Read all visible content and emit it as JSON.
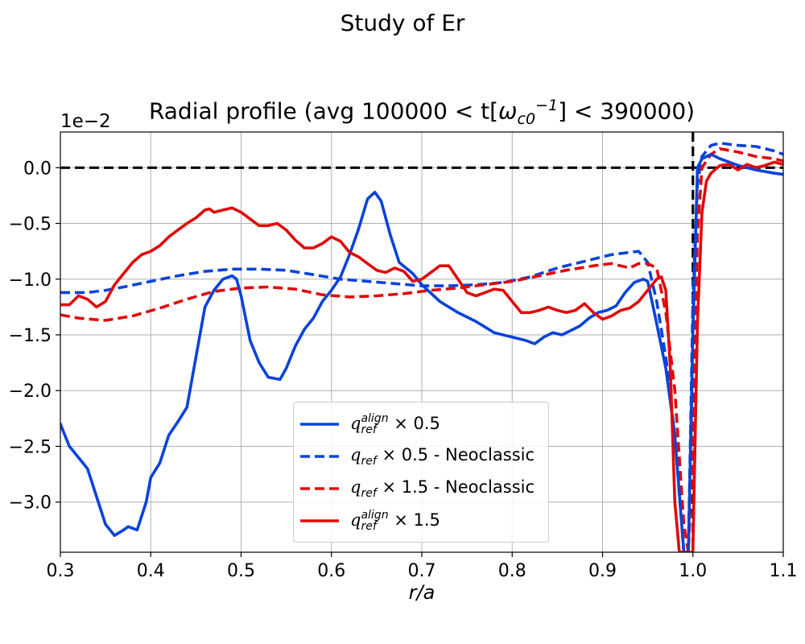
{
  "figure": {
    "suptitle": "Study of Er",
    "offset_label": "1e−2"
  },
  "chart_data": {
    "type": "line",
    "title": "Radial profile (avg 100000 < t[ω_c0^-1] < 390000)",
    "title_parts": {
      "prefix": "Radial profile (avg 100000 < t[",
      "symbol": "ω",
      "sub": "c0",
      "sup": "−1",
      "suffix": "] < 390000)"
    },
    "xlabel": "r/a",
    "ylabel": "",
    "y_scale_exponent": -2,
    "xlim": [
      0.3,
      1.1
    ],
    "ylim": [
      -3.45,
      0.32
    ],
    "xticks": [
      0.3,
      0.4,
      0.5,
      0.6,
      0.7,
      0.8,
      0.9,
      1.0,
      1.1
    ],
    "xtick_labels": [
      "0.3",
      "0.4",
      "0.5",
      "0.6",
      "0.7",
      "0.8",
      "0.9",
      "1.0",
      "1.1"
    ],
    "yticks": [
      0.0,
      -0.5,
      -1.0,
      -1.5,
      -2.0,
      -2.5,
      -3.0
    ],
    "ytick_labels": [
      "0.0",
      "−0.5",
      "−1.0",
      "−1.5",
      "−2.0",
      "−2.5",
      "−3.0"
    ],
    "grid": true,
    "legend_location": "lower center",
    "reference_lines": {
      "hline_y": 0.0,
      "vline_x": 1.0,
      "color": "#000000",
      "style": "dashed"
    },
    "series": [
      {
        "name": "q_ref^align × 0.5",
        "label_main": "q",
        "label_sup": "align",
        "label_sub": "ref",
        "label_rest": " × 0.5",
        "color": "#0a43d9",
        "style": "solid",
        "x": [
          0.3,
          0.31,
          0.32,
          0.33,
          0.34,
          0.35,
          0.36,
          0.37,
          0.375,
          0.385,
          0.395,
          0.4,
          0.41,
          0.42,
          0.43,
          0.44,
          0.45,
          0.46,
          0.47,
          0.48,
          0.49,
          0.495,
          0.5,
          0.51,
          0.52,
          0.53,
          0.543,
          0.55,
          0.56,
          0.57,
          0.58,
          0.59,
          0.6,
          0.61,
          0.62,
          0.63,
          0.64,
          0.648,
          0.655,
          0.665,
          0.675,
          0.69,
          0.7,
          0.72,
          0.74,
          0.76,
          0.78,
          0.8,
          0.815,
          0.825,
          0.835,
          0.845,
          0.855,
          0.865,
          0.875,
          0.885,
          0.895,
          0.905,
          0.915,
          0.925,
          0.935,
          0.945,
          0.95,
          0.96,
          0.97,
          0.98,
          0.99,
          0.995,
          1.0,
          1.005,
          1.01,
          1.02,
          1.03,
          1.05,
          1.07,
          1.09,
          1.1
        ],
        "y": [
          -2.3,
          -2.5,
          -2.6,
          -2.7,
          -2.95,
          -3.2,
          -3.3,
          -3.25,
          -3.22,
          -3.25,
          -3.0,
          -2.78,
          -2.65,
          -2.4,
          -2.28,
          -2.15,
          -1.7,
          -1.25,
          -1.1,
          -1.0,
          -0.97,
          -1.0,
          -1.15,
          -1.55,
          -1.75,
          -1.88,
          -1.9,
          -1.8,
          -1.6,
          -1.45,
          -1.35,
          -1.2,
          -1.1,
          -0.98,
          -0.78,
          -0.55,
          -0.28,
          -0.22,
          -0.3,
          -0.6,
          -0.85,
          -0.95,
          -1.05,
          -1.2,
          -1.3,
          -1.38,
          -1.48,
          -1.52,
          -1.55,
          -1.58,
          -1.52,
          -1.48,
          -1.5,
          -1.46,
          -1.42,
          -1.35,
          -1.3,
          -1.28,
          -1.24,
          -1.12,
          -1.03,
          -1.0,
          -1.02,
          -1.4,
          -1.8,
          -2.4,
          -3.45,
          -3.45,
          -1.5,
          0.0,
          0.08,
          0.12,
          0.08,
          0.02,
          -0.02,
          -0.05,
          -0.06
        ]
      },
      {
        "name": "q_ref × 0.5 - Neoclassic",
        "label_main": "q",
        "label_sup": "",
        "label_sub": "ref",
        "label_rest": " × 0.5 - Neoclassic",
        "color": "#0a43d9",
        "style": "dashed",
        "x": [
          0.3,
          0.33,
          0.35,
          0.37,
          0.4,
          0.43,
          0.46,
          0.49,
          0.52,
          0.55,
          0.58,
          0.61,
          0.64,
          0.67,
          0.7,
          0.73,
          0.76,
          0.79,
          0.82,
          0.85,
          0.88,
          0.91,
          0.93,
          0.94,
          0.95,
          0.96,
          0.97,
          0.98,
          0.99,
          0.995,
          1.0,
          1.005,
          1.01,
          1.02,
          1.03,
          1.05,
          1.07,
          1.09,
          1.1
        ],
        "y": [
          -1.12,
          -1.12,
          -1.1,
          -1.07,
          -1.02,
          -0.97,
          -0.93,
          -0.91,
          -0.91,
          -0.92,
          -0.96,
          -1.0,
          -1.02,
          -1.04,
          -1.06,
          -1.06,
          -1.05,
          -1.03,
          -0.98,
          -0.9,
          -0.84,
          -0.78,
          -0.76,
          -0.75,
          -0.85,
          -1.2,
          -1.7,
          -2.4,
          -3.45,
          -3.45,
          -1.2,
          -0.15,
          0.1,
          0.2,
          0.22,
          0.2,
          0.19,
          0.15,
          0.12
        ]
      },
      {
        "name": "q_ref × 1.5 - Neoclassic",
        "label_main": "q",
        "label_sup": "",
        "label_sub": "ref",
        "label_rest": " × 1.5 - Neoclassic",
        "color": "#e00a0a",
        "style": "dashed",
        "x": [
          0.3,
          0.32,
          0.35,
          0.38,
          0.41,
          0.44,
          0.47,
          0.5,
          0.53,
          0.56,
          0.59,
          0.62,
          0.65,
          0.68,
          0.71,
          0.74,
          0.77,
          0.8,
          0.83,
          0.86,
          0.89,
          0.91,
          0.92,
          0.93,
          0.94,
          0.95,
          0.96,
          0.97,
          0.98,
          0.99,
          0.995,
          1.0,
          1.005,
          1.01,
          1.02,
          1.03,
          1.05,
          1.07,
          1.09,
          1.1
        ],
        "y": [
          -1.32,
          -1.35,
          -1.37,
          -1.33,
          -1.26,
          -1.18,
          -1.11,
          -1.08,
          -1.07,
          -1.09,
          -1.14,
          -1.16,
          -1.15,
          -1.13,
          -1.1,
          -1.08,
          -1.05,
          -1.02,
          -0.97,
          -0.92,
          -0.88,
          -0.86,
          -0.88,
          -0.9,
          -0.86,
          -0.86,
          -0.9,
          -1.3,
          -2.0,
          -3.2,
          -3.45,
          -2.5,
          -0.6,
          0.0,
          0.12,
          0.17,
          0.14,
          0.1,
          0.08,
          0.06
        ]
      },
      {
        "name": "q_ref^align × 1.5",
        "label_main": "q",
        "label_sup": "align",
        "label_sub": "ref",
        "label_rest": " × 1.5",
        "color": "#e00a0a",
        "style": "solid",
        "x": [
          0.3,
          0.31,
          0.32,
          0.33,
          0.34,
          0.35,
          0.36,
          0.37,
          0.38,
          0.39,
          0.4,
          0.41,
          0.42,
          0.43,
          0.44,
          0.45,
          0.46,
          0.465,
          0.47,
          0.48,
          0.49,
          0.5,
          0.51,
          0.52,
          0.53,
          0.54,
          0.55,
          0.56,
          0.57,
          0.58,
          0.59,
          0.6,
          0.61,
          0.62,
          0.63,
          0.64,
          0.65,
          0.66,
          0.67,
          0.68,
          0.69,
          0.7,
          0.71,
          0.72,
          0.73,
          0.74,
          0.75,
          0.76,
          0.77,
          0.78,
          0.79,
          0.8,
          0.81,
          0.82,
          0.83,
          0.84,
          0.85,
          0.86,
          0.87,
          0.88,
          0.89,
          0.9,
          0.91,
          0.92,
          0.93,
          0.94,
          0.95,
          0.96,
          0.965,
          0.97,
          0.975,
          0.98,
          0.985,
          0.99,
          0.995,
          1.0,
          1.005,
          1.01,
          1.015,
          1.02,
          1.03,
          1.04,
          1.05,
          1.06,
          1.07,
          1.08,
          1.09,
          1.1
        ],
        "y": [
          -1.23,
          -1.23,
          -1.15,
          -1.18,
          -1.25,
          -1.2,
          -1.05,
          -0.95,
          -0.85,
          -0.78,
          -0.75,
          -0.7,
          -0.62,
          -0.56,
          -0.5,
          -0.45,
          -0.38,
          -0.37,
          -0.4,
          -0.38,
          -0.36,
          -0.4,
          -0.46,
          -0.52,
          -0.52,
          -0.5,
          -0.56,
          -0.65,
          -0.72,
          -0.72,
          -0.68,
          -0.62,
          -0.66,
          -0.76,
          -0.8,
          -0.86,
          -0.92,
          -0.94,
          -0.9,
          -0.93,
          -1.02,
          -1.0,
          -0.94,
          -0.88,
          -0.88,
          -1.0,
          -1.12,
          -1.15,
          -1.12,
          -1.09,
          -1.1,
          -1.2,
          -1.3,
          -1.3,
          -1.28,
          -1.25,
          -1.28,
          -1.3,
          -1.28,
          -1.22,
          -1.3,
          -1.36,
          -1.33,
          -1.28,
          -1.26,
          -1.2,
          -1.1,
          -1.0,
          -0.98,
          -1.1,
          -1.8,
          -3.0,
          -3.45,
          -3.45,
          -3.45,
          -3.45,
          -1.4,
          -0.4,
          -0.12,
          -0.05,
          0.02,
          0.03,
          -0.02,
          0.03,
          0.0,
          0.02,
          0.05,
          0.03
        ]
      }
    ]
  }
}
